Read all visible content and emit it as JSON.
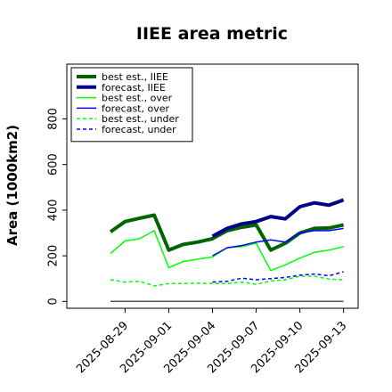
{
  "chart_data": {
    "type": "line",
    "title": "IIEE area metric",
    "ylabel": "Area (1000km2)",
    "xlabel": "",
    "ylim": [
      -30,
      1040
    ],
    "yticks": [
      0,
      200,
      400,
      600,
      800
    ],
    "xlim": [
      "2025-08-25",
      "2025-09-14"
    ],
    "xticks": [
      {
        "date": "2025-08-29",
        "label": "2025-08-29",
        "color": "#000000"
      },
      {
        "date": "2025-09-01",
        "label": "2025-09-01",
        "color": "#000000"
      },
      {
        "date": "2025-09-04",
        "label": "2025-09-04",
        "color": "#228b22"
      },
      {
        "date": "2025-09-07",
        "label": "2025-09-07",
        "color": "#000000"
      },
      {
        "date": "2025-09-10",
        "label": "2025-09-10",
        "color": "#000000"
      },
      {
        "date": "2025-09-13",
        "label": "2025-09-13",
        "color": "#000000"
      }
    ],
    "legend_position": "top-left",
    "grid": false,
    "series": [
      {
        "name": "best est., IIEE",
        "color": "#006400",
        "width": 4,
        "dash": "",
        "x": [
          "2025-08-28",
          "2025-08-29",
          "2025-08-30",
          "2025-08-31",
          "2025-09-01",
          "2025-09-02",
          "2025-09-03",
          "2025-09-04",
          "2025-09-05",
          "2025-09-06",
          "2025-09-07",
          "2025-09-08",
          "2025-09-09",
          "2025-09-10",
          "2025-09-11",
          "2025-09-12",
          "2025-09-13"
        ],
        "y": [
          305,
          350,
          365,
          378,
          225,
          250,
          260,
          275,
          310,
          325,
          335,
          225,
          255,
          300,
          320,
          322,
          335
        ]
      },
      {
        "name": "forecast, IIEE",
        "color": "#00008b",
        "width": 4,
        "dash": "",
        "x": [
          "2025-09-04",
          "2025-09-05",
          "2025-09-06",
          "2025-09-07",
          "2025-09-08",
          "2025-09-09",
          "2025-09-10",
          "2025-09-11",
          "2025-09-12",
          "2025-09-13"
        ],
        "y": [
          285,
          320,
          340,
          350,
          372,
          362,
          415,
          432,
          422,
          445
        ]
      },
      {
        "name": "best est., over",
        "color": "#00ff00",
        "width": 1.5,
        "dash": "",
        "x": [
          "2025-08-28",
          "2025-08-29",
          "2025-08-30",
          "2025-08-31",
          "2025-09-01",
          "2025-09-02",
          "2025-09-03",
          "2025-09-04",
          "2025-09-05",
          "2025-09-06",
          "2025-09-07",
          "2025-09-08",
          "2025-09-09",
          "2025-09-10",
          "2025-09-11",
          "2025-09-12",
          "2025-09-13"
        ],
        "y": [
          210,
          265,
          275,
          310,
          148,
          175,
          185,
          195,
          235,
          240,
          255,
          135,
          160,
          190,
          215,
          225,
          240
        ]
      },
      {
        "name": "forecast, over",
        "color": "#0000ff",
        "width": 1.5,
        "dash": "",
        "x": [
          "2025-09-04",
          "2025-09-05",
          "2025-09-06",
          "2025-09-07",
          "2025-09-08",
          "2025-09-09",
          "2025-09-10",
          "2025-09-11",
          "2025-09-12",
          "2025-09-13"
        ],
        "y": [
          200,
          235,
          245,
          260,
          270,
          260,
          300,
          310,
          310,
          320
        ]
      },
      {
        "name": "best est., under",
        "color": "#00ff00",
        "width": 1.5,
        "dash": "4,3",
        "x": [
          "2025-08-28",
          "2025-08-29",
          "2025-08-30",
          "2025-08-31",
          "2025-09-01",
          "2025-09-02",
          "2025-09-03",
          "2025-09-04",
          "2025-09-05",
          "2025-09-06",
          "2025-09-07",
          "2025-09-08",
          "2025-09-09",
          "2025-09-10",
          "2025-09-11",
          "2025-09-12",
          "2025-09-13"
        ],
        "y": [
          95,
          85,
          88,
          68,
          78,
          78,
          80,
          78,
          78,
          85,
          75,
          90,
          95,
          110,
          110,
          98,
          95
        ]
      },
      {
        "name": "forecast, under",
        "color": "#0000ff",
        "width": 1.5,
        "dash": "4,3",
        "x": [
          "2025-09-04",
          "2025-09-05",
          "2025-09-06",
          "2025-09-07",
          "2025-09-08",
          "2025-09-09",
          "2025-09-10",
          "2025-09-11",
          "2025-09-12",
          "2025-09-13"
        ],
        "y": [
          85,
          88,
          102,
          95,
          100,
          105,
          115,
          120,
          112,
          130
        ]
      },
      {
        "name": "",
        "color": "#555555",
        "width": 1.5,
        "dash": "",
        "legend": false,
        "x": [
          "2025-08-28",
          "2025-09-13"
        ],
        "y": [
          0,
          0
        ]
      }
    ]
  }
}
